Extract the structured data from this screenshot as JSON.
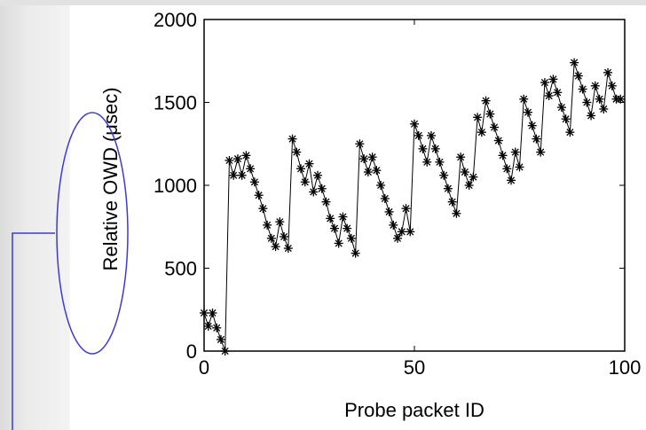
{
  "chart_data": {
    "type": "line",
    "xlabel": "Probe packet ID",
    "ylabel": "Relative OWD (μsec)",
    "xlim": [
      0,
      100
    ],
    "ylim": [
      0,
      2000
    ],
    "xticks": [
      "0",
      "50",
      "100"
    ],
    "yticks": [
      "0",
      "500",
      "1000",
      "1500",
      "2000"
    ],
    "marker": "asterisk",
    "series": [
      {
        "color": "#000000",
        "x": [
          0,
          1,
          2,
          3,
          4,
          5,
          6,
          7,
          8,
          9,
          10,
          11,
          12,
          13,
          14,
          15,
          16,
          17,
          18,
          19,
          20,
          21,
          22,
          23,
          24,
          25,
          26,
          27,
          28,
          29,
          30,
          31,
          32,
          33,
          34,
          35,
          36,
          37,
          38,
          39,
          40,
          41,
          42,
          43,
          44,
          45,
          46,
          47,
          48,
          49,
          50,
          51,
          52,
          53,
          54,
          55,
          56,
          57,
          58,
          59,
          60,
          61,
          62,
          63,
          64,
          65,
          66,
          67,
          68,
          69,
          70,
          71,
          72,
          73,
          74,
          75,
          76,
          77,
          78,
          79,
          80,
          81,
          82,
          83,
          84,
          85,
          86,
          87,
          88,
          89,
          90,
          91,
          92,
          93,
          94,
          95,
          96,
          97,
          98,
          99
        ],
        "y": [
          230,
          150,
          230,
          140,
          70,
          0,
          1150,
          1060,
          1160,
          1060,
          1180,
          1100,
          1020,
          940,
          860,
          760,
          680,
          630,
          780,
          690,
          620,
          1280,
          1200,
          1100,
          1020,
          1130,
          960,
          1060,
          980,
          900,
          800,
          740,
          650,
          810,
          740,
          680,
          590,
          1250,
          1160,
          1080,
          1170,
          1090,
          1000,
          920,
          840,
          760,
          680,
          720,
          860,
          720,
          1370,
          1300,
          1220,
          1140,
          1300,
          1220,
          1140,
          1060,
          980,
          900,
          830,
          1170,
          1080,
          1000,
          1050,
          1410,
          1320,
          1510,
          1430,
          1350,
          1270,
          1180,
          1100,
          1030,
          1200,
          1110,
          1520,
          1440,
          1360,
          1280,
          1200,
          1620,
          1540,
          1640,
          1560,
          1470,
          1400,
          1320,
          1740,
          1660,
          1580,
          1500,
          1420,
          1600,
          1520,
          1460,
          1680,
          1600,
          1520,
          1520
        ]
      }
    ]
  },
  "annotation": {
    "color": "#3b3bd0"
  }
}
